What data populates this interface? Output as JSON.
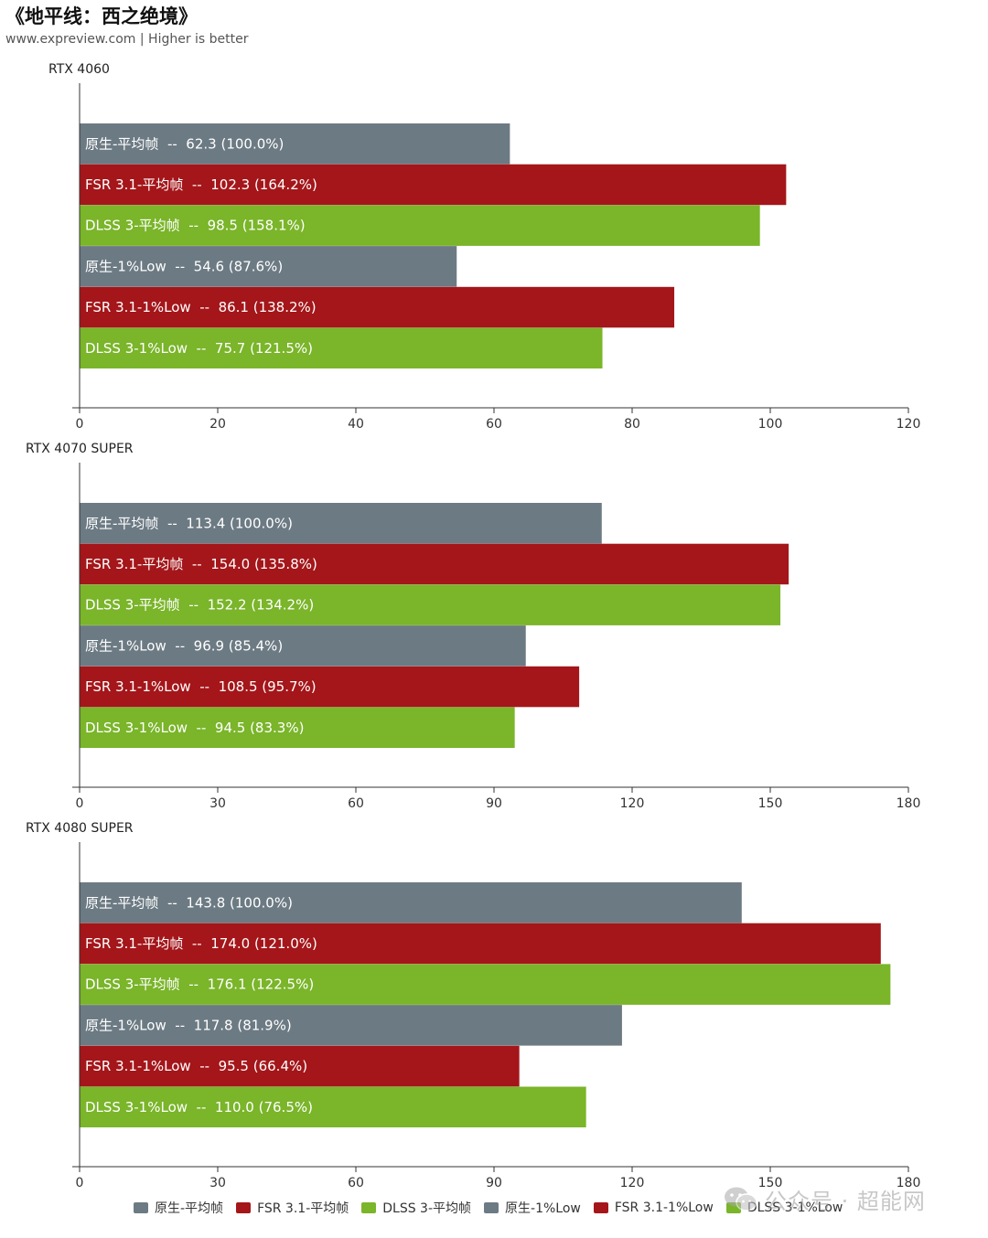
{
  "header": {
    "title": "《地平线：西之绝境》",
    "subtitle": "www.expreview.com | Higher is better"
  },
  "colors": {
    "native": "#6c7a83",
    "fsr": "#a4161a",
    "dlss": "#7ab52a",
    "axis": "#333333"
  },
  "chart_data": [
    {
      "type": "bar",
      "orientation": "horizontal",
      "title": "RTX 4060",
      "xlim": [
        0,
        120
      ],
      "ticks": [
        0,
        20,
        40,
        60,
        80,
        100,
        120
      ],
      "bars": [
        {
          "label": "原生-平均帧  --  62.3 (100.0%)",
          "value": 62.3,
          "series": "native"
        },
        {
          "label": "FSR 3.1-平均帧  --  102.3 (164.2%)",
          "value": 102.3,
          "series": "fsr"
        },
        {
          "label": "DLSS 3-平均帧  --  98.5 (158.1%)",
          "value": 98.5,
          "series": "dlss"
        },
        {
          "label": "原生-1%Low  --  54.6 (87.6%)",
          "value": 54.6,
          "series": "native"
        },
        {
          "label": "FSR 3.1-1%Low  --  86.1 (138.2%)",
          "value": 86.1,
          "series": "fsr"
        },
        {
          "label": "DLSS 3-1%Low  --  75.7 (121.5%)",
          "value": 75.7,
          "series": "dlss"
        }
      ]
    },
    {
      "type": "bar",
      "orientation": "horizontal",
      "title": "RTX 4070 SUPER",
      "xlim": [
        0,
        180
      ],
      "ticks": [
        0,
        30,
        60,
        90,
        120,
        150,
        180
      ],
      "bars": [
        {
          "label": "原生-平均帧  --  113.4 (100.0%)",
          "value": 113.4,
          "series": "native"
        },
        {
          "label": "FSR 3.1-平均帧  --  154.0 (135.8%)",
          "value": 154.0,
          "series": "fsr"
        },
        {
          "label": "DLSS 3-平均帧  --  152.2 (134.2%)",
          "value": 152.2,
          "series": "dlss"
        },
        {
          "label": "原生-1%Low  --  96.9 (85.4%)",
          "value": 96.9,
          "series": "native"
        },
        {
          "label": "FSR 3.1-1%Low  --  108.5 (95.7%)",
          "value": 108.5,
          "series": "fsr"
        },
        {
          "label": "DLSS 3-1%Low  --  94.5 (83.3%)",
          "value": 94.5,
          "series": "dlss"
        }
      ]
    },
    {
      "type": "bar",
      "orientation": "horizontal",
      "title": "RTX 4080 SUPER",
      "xlim": [
        0,
        180
      ],
      "ticks": [
        0,
        30,
        60,
        90,
        120,
        150,
        180
      ],
      "bars": [
        {
          "label": "原生-平均帧  --  143.8 (100.0%)",
          "value": 143.8,
          "series": "native"
        },
        {
          "label": "FSR 3.1-平均帧  --  174.0 (121.0%)",
          "value": 174.0,
          "series": "fsr"
        },
        {
          "label": "DLSS 3-平均帧  --  176.1 (122.5%)",
          "value": 176.1,
          "series": "dlss"
        },
        {
          "label": "原生-1%Low  --  117.8 (81.9%)",
          "value": 117.8,
          "series": "native"
        },
        {
          "label": "FSR 3.1-1%Low  --  95.5 (66.4%)",
          "value": 95.5,
          "series": "fsr"
        },
        {
          "label": "DLSS 3-1%Low  --  110.0 (76.5%)",
          "value": 110.0,
          "series": "dlss"
        }
      ]
    }
  ],
  "legend": [
    {
      "label": "原生-平均帧",
      "series": "native"
    },
    {
      "label": "FSR 3.1-平均帧",
      "series": "fsr"
    },
    {
      "label": "DLSS 3-平均帧",
      "series": "dlss"
    },
    {
      "label": "原生-1%Low",
      "series": "native"
    },
    {
      "label": "FSR 3.1-1%Low",
      "series": "fsr"
    },
    {
      "label": "DLSS 3-1%Low",
      "series": "dlss"
    }
  ],
  "watermark": {
    "text": "公众号 · 超能网",
    "icon": "wechat-icon"
  }
}
